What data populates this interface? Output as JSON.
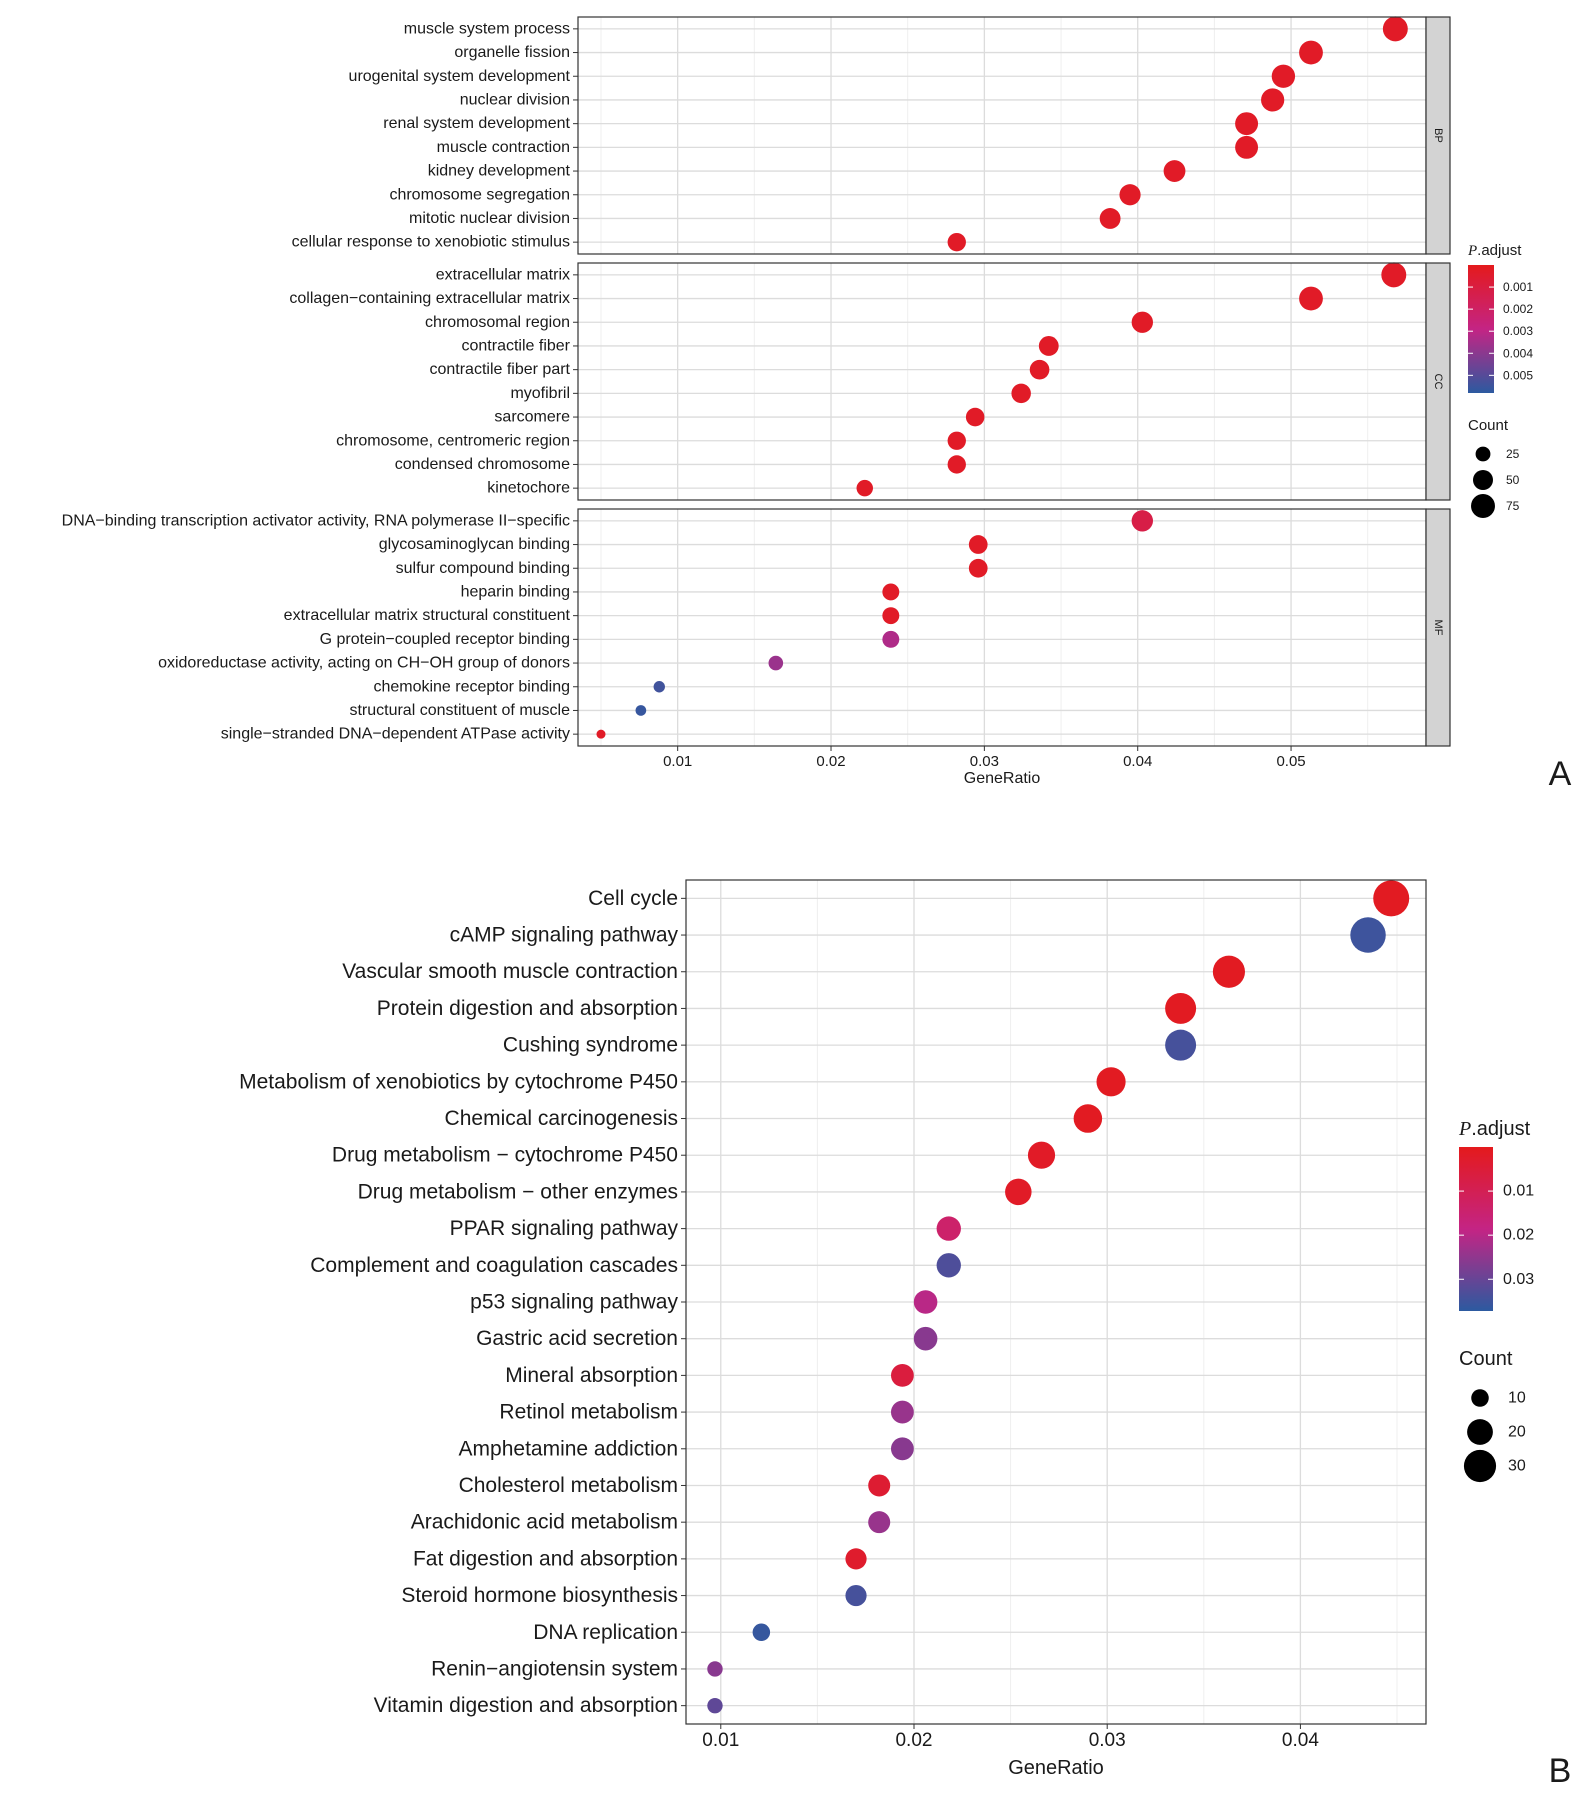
{
  "chart_data": [
    {
      "panel_label": "A",
      "type": "scatter",
      "xlabel": "GeneRatio",
      "xlim": [
        0.0035,
        0.0588
      ],
      "xticks": [
        0.01,
        0.02,
        0.03,
        0.04,
        0.05
      ],
      "tick_labels": [
        "0.01",
        "0.02",
        "0.03",
        "0.04",
        "0.05"
      ],
      "grid": true,
      "legend_placement": "right",
      "color_legend": {
        "title_italic": "P",
        "title_rest": ".adjust",
        "ticks": [
          0.001,
          0.002,
          0.003,
          0.004,
          0.005
        ],
        "tick_labels": [
          "0.001",
          "0.002",
          "0.003",
          "0.004",
          "0.005"
        ],
        "range": [
          0.0,
          0.0058
        ],
        "low_color": "#e41a1c",
        "high_color": "#2c5aa0"
      },
      "size_legend": {
        "title": "Count",
        "values": [
          25,
          50,
          75
        ],
        "labels": [
          "25",
          "50",
          "75"
        ],
        "range": [
          5,
          90
        ]
      },
      "facets": [
        {
          "name": "BP",
          "rows": [
            {
              "term": "muscle system process",
              "x": 0.0568,
              "p": 0.0003,
              "count": 82
            },
            {
              "term": "organelle fission",
              "x": 0.0513,
              "p": 0.0003,
              "count": 74
            },
            {
              "term": "urogenital system development",
              "x": 0.0495,
              "p": 0.0003,
              "count": 71
            },
            {
              "term": "nuclear division",
              "x": 0.0488,
              "p": 0.0003,
              "count": 70
            },
            {
              "term": "renal system development",
              "x": 0.0471,
              "p": 0.0003,
              "count": 68
            },
            {
              "term": "muscle contraction",
              "x": 0.0471,
              "p": 0.0003,
              "count": 68
            },
            {
              "term": "kidney development",
              "x": 0.0424,
              "p": 0.0003,
              "count": 61
            },
            {
              "term": "chromosome segregation",
              "x": 0.0395,
              "p": 0.0003,
              "count": 57
            },
            {
              "term": "mitotic nuclear division",
              "x": 0.0382,
              "p": 0.0003,
              "count": 55
            },
            {
              "term": "cellular response to xenobiotic stimulus",
              "x": 0.0282,
              "p": 0.0003,
              "count": 41
            }
          ]
        },
        {
          "name": "CC",
          "rows": [
            {
              "term": "extracellular matrix",
              "x": 0.0567,
              "p": 0.0003,
              "count": 82
            },
            {
              "term": "collagen−containing extracellular matrix",
              "x": 0.0513,
              "p": 0.0003,
              "count": 74
            },
            {
              "term": "chromosomal region",
              "x": 0.0403,
              "p": 0.0003,
              "count": 58
            },
            {
              "term": "contractile fiber",
              "x": 0.0342,
              "p": 0.0003,
              "count": 49
            },
            {
              "term": "contractile fiber part",
              "x": 0.0336,
              "p": 0.0003,
              "count": 48
            },
            {
              "term": "myofibril",
              "x": 0.0324,
              "p": 0.0003,
              "count": 47
            },
            {
              "term": "sarcomere",
              "x": 0.0294,
              "p": 0.0003,
              "count": 42
            },
            {
              "term": "chromosome, centromeric region",
              "x": 0.0282,
              "p": 0.0003,
              "count": 41
            },
            {
              "term": "condensed chromosome",
              "x": 0.0282,
              "p": 0.0003,
              "count": 41
            },
            {
              "term": "kinetochore",
              "x": 0.0222,
              "p": 0.0003,
              "count": 32
            }
          ]
        },
        {
          "name": "MF",
          "rows": [
            {
              "term": "DNA−binding transcription activator activity, RNA polymerase II−specific",
              "x": 0.0403,
              "p": 0.0012,
              "count": 58
            },
            {
              "term": "glycosaminoglycan binding",
              "x": 0.0296,
              "p": 0.0003,
              "count": 43
            },
            {
              "term": "sulfur compound binding",
              "x": 0.0296,
              "p": 0.0003,
              "count": 43
            },
            {
              "term": "heparin binding",
              "x": 0.0239,
              "p": 0.0003,
              "count": 34
            },
            {
              "term": "extracellular matrix structural constituent",
              "x": 0.0239,
              "p": 0.0003,
              "count": 34
            },
            {
              "term": "G protein−coupled receptor binding",
              "x": 0.0239,
              "p": 0.0033,
              "count": 34
            },
            {
              "term": "oxidoreductase activity, acting on CH−OH group of donors",
              "x": 0.0164,
              "p": 0.0037,
              "count": 24
            },
            {
              "term": "chemokine receptor binding",
              "x": 0.0088,
              "p": 0.0054,
              "count": 13
            },
            {
              "term": "structural constituent of muscle",
              "x": 0.0076,
              "p": 0.0056,
              "count": 11
            },
            {
              "term": "single−stranded DNA−dependent ATPase activity",
              "x": 0.005,
              "p": 0.0003,
              "count": 7
            }
          ]
        }
      ]
    },
    {
      "panel_label": "B",
      "type": "scatter",
      "xlabel": "GeneRatio",
      "xlim": [
        0.0082,
        0.0465
      ],
      "xticks": [
        0.01,
        0.02,
        0.03,
        0.04
      ],
      "tick_labels": [
        "0.01",
        "0.02",
        "0.03",
        "0.04"
      ],
      "grid": true,
      "legend_placement": "right",
      "color_legend": {
        "title_italic": "P",
        "title_rest": ".adjust",
        "ticks": [
          0.01,
          0.02,
          0.03
        ],
        "tick_labels": [
          "0.01",
          "0.02",
          "0.03"
        ],
        "range": [
          0.0,
          0.0372
        ],
        "low_color": "#e41a1c",
        "high_color": "#2c5aa0"
      },
      "size_legend": {
        "title": "Count",
        "values": [
          10,
          20,
          30
        ],
        "labels": [
          "10",
          "20",
          "30"
        ],
        "range": [
          6,
          37
        ]
      },
      "facets": [
        {
          "name": "",
          "rows": [
            {
              "term": "Cell cycle",
              "x": 0.0447,
              "p": 0.001,
              "count": 37
            },
            {
              "term": "cAMP signaling pathway",
              "x": 0.0435,
              "p": 0.035,
              "count": 36
            },
            {
              "term": "Vascular smooth muscle contraction",
              "x": 0.0363,
              "p": 0.001,
              "count": 30
            },
            {
              "term": "Protein digestion and absorption",
              "x": 0.0338,
              "p": 0.001,
              "count": 28
            },
            {
              "term": "Cushing syndrome",
              "x": 0.0338,
              "p": 0.034,
              "count": 28
            },
            {
              "term": "Metabolism of xenobiotics by cytochrome P450",
              "x": 0.0302,
              "p": 0.001,
              "count": 25
            },
            {
              "term": "Chemical carcinogenesis",
              "x": 0.029,
              "p": 0.001,
              "count": 24
            },
            {
              "term": "Drug metabolism − cytochrome P450",
              "x": 0.0266,
              "p": 0.002,
              "count": 22
            },
            {
              "term": "Drug metabolism − other enzymes",
              "x": 0.0254,
              "p": 0.002,
              "count": 21
            },
            {
              "term": "PPAR signaling pathway",
              "x": 0.0218,
              "p": 0.014,
              "count": 18
            },
            {
              "term": "Complement and coagulation cascades",
              "x": 0.0218,
              "p": 0.033,
              "count": 18
            },
            {
              "term": "p53 signaling pathway",
              "x": 0.0206,
              "p": 0.02,
              "count": 17
            },
            {
              "term": "Gastric acid secretion",
              "x": 0.0206,
              "p": 0.026,
              "count": 17
            },
            {
              "term": "Mineral absorption",
              "x": 0.0194,
              "p": 0.006,
              "count": 16
            },
            {
              "term": "Retinol metabolism",
              "x": 0.0194,
              "p": 0.024,
              "count": 16
            },
            {
              "term": "Amphetamine addiction",
              "x": 0.0194,
              "p": 0.026,
              "count": 16
            },
            {
              "term": "Cholesterol metabolism",
              "x": 0.0182,
              "p": 0.004,
              "count": 15
            },
            {
              "term": "Arachidonic acid metabolism",
              "x": 0.0182,
              "p": 0.024,
              "count": 15
            },
            {
              "term": "Fat digestion and absorption",
              "x": 0.017,
              "p": 0.003,
              "count": 14
            },
            {
              "term": "Steroid hormone biosynthesis",
              "x": 0.017,
              "p": 0.034,
              "count": 14
            },
            {
              "term": "DNA replication",
              "x": 0.0121,
              "p": 0.036,
              "count": 10
            },
            {
              "term": "Renin−angiotensin system",
              "x": 0.0097,
              "p": 0.026,
              "count": 8
            },
            {
              "term": "Vitamin digestion and absorption",
              "x": 0.0097,
              "p": 0.031,
              "count": 8
            }
          ]
        }
      ]
    }
  ]
}
